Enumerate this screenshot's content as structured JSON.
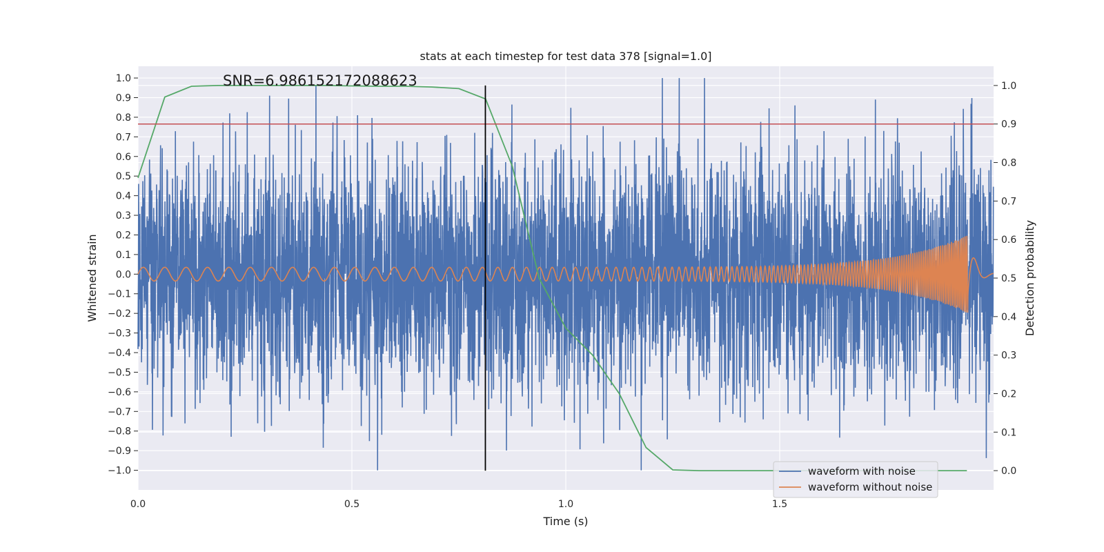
{
  "chart_data": {
    "type": "line",
    "title": "stats at each timestep for test data 378 [signal=1.0]",
    "xlabel": "Time (s)",
    "ylabel": "Whitened strain",
    "y2label": "Detection probability",
    "annotation": "SNR=6.986152172088623",
    "xlim": [
      0,
      2.0
    ],
    "ylim": [
      -1.1,
      1.06
    ],
    "y2lim": [
      -0.05,
      1.05
    ],
    "x_ticks": [
      "0.0",
      "0.5",
      "1.0",
      "1.5"
    ],
    "x_tick_values": [
      0,
      0.5,
      1.0,
      1.5
    ],
    "y_ticks": [
      "1.0",
      "0.9",
      "0.8",
      "0.7",
      "0.6",
      "0.5",
      "0.4",
      "0.3",
      "0.2",
      "0.1",
      "0.0",
      "−0.1",
      "−0.2",
      "−0.3",
      "−0.4",
      "−0.5",
      "−0.6",
      "−0.7",
      "−0.8",
      "−0.9",
      "−1.0"
    ],
    "y_tick_values": [
      1.0,
      0.9,
      0.8,
      0.7,
      0.6,
      0.5,
      0.4,
      0.3,
      0.2,
      0.1,
      0.0,
      -0.1,
      -0.2,
      -0.3,
      -0.4,
      -0.5,
      -0.6,
      -0.7,
      -0.8,
      -0.9,
      -1.0
    ],
    "y2_ticks": [
      "1.0",
      "0.9",
      "0.8",
      "0.7",
      "0.6",
      "0.5",
      "0.4",
      "0.3",
      "0.2",
      "0.1",
      "0.0"
    ],
    "y2_tick_values": [
      1.0,
      0.9,
      0.8,
      0.7,
      0.6,
      0.5,
      0.4,
      0.3,
      0.2,
      0.1,
      0.0
    ],
    "grid": true,
    "legend_position": "lower-right",
    "threshold_line": {
      "y2": 0.9,
      "color": "#c44e52"
    },
    "marker_line": {
      "x": 0.812,
      "color": "#000000"
    },
    "series": [
      {
        "name": "waveform with noise",
        "axis": "left",
        "color": "#4c72b0",
        "kind": "noise",
        "sample_rate": 2048,
        "x_start": 0,
        "x_end": 2.0,
        "std": 0.3,
        "clip": [
          -1.0,
          1.0
        ]
      },
      {
        "name": "waveform without noise",
        "axis": "left",
        "color": "#dd8452",
        "kind": "chirp",
        "sample_rate": 2048,
        "x_start": 0,
        "x_end": 2.0,
        "f_start": 20,
        "f_end": 260,
        "amp_start": 0.035,
        "amp_peak": 0.2,
        "merger_time": 1.94
      },
      {
        "axis": "right",
        "color": "#55a868",
        "kind": "points",
        "x": [
          0.0,
          0.0625,
          0.125,
          0.1875,
          0.25,
          0.3125,
          0.375,
          0.4375,
          0.5,
          0.5625,
          0.625,
          0.6875,
          0.75,
          0.8125,
          0.875,
          0.9375,
          1.0,
          1.0625,
          1.125,
          1.1875,
          1.25,
          1.3125,
          1.375,
          1.4375,
          1.5,
          1.5625,
          1.625,
          1.6875,
          1.75,
          1.8125,
          1.875,
          1.9375
        ],
        "y": [
          0.76,
          0.97,
          0.998,
          1.0,
          1.0,
          1.0,
          1.0,
          1.0,
          0.999,
          0.998,
          0.998,
          0.996,
          0.992,
          0.965,
          0.79,
          0.5,
          0.37,
          0.3,
          0.2,
          0.06,
          0.002,
          0.0,
          0.0,
          0.0,
          0.0,
          0.0,
          0.0,
          0.0,
          0.0,
          0.0,
          0.0,
          0.0
        ]
      }
    ]
  }
}
